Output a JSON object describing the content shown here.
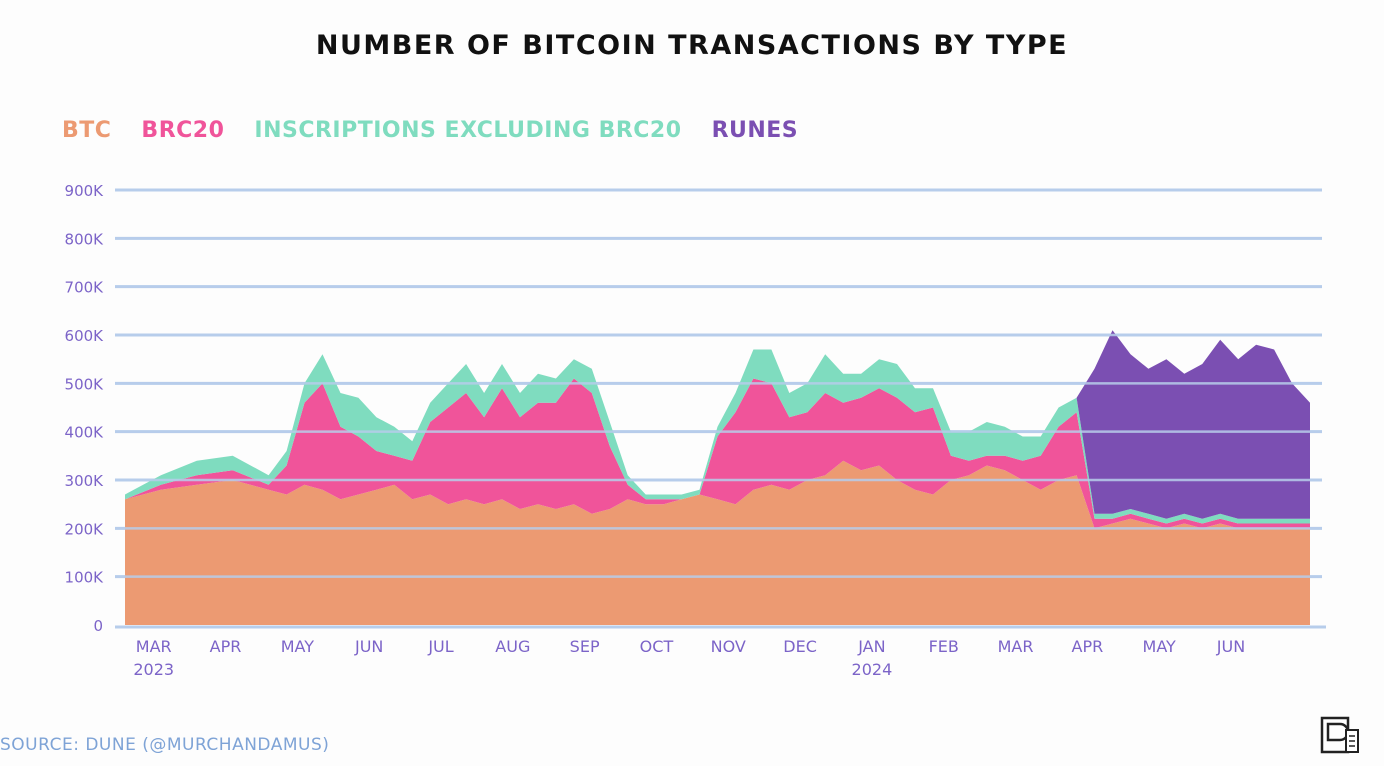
{
  "colors": {
    "btc": "#ec9a72",
    "brc20": "#f0549a",
    "inscriptions": "#7fdcbf",
    "runes": "#7b4fb2",
    "axis_text": "#7c64c8",
    "grid": "#b7cdeb"
  },
  "source": "SOURCE: DUNE (@MURCHANDAMUS)",
  "chart_data": {
    "type": "area",
    "stacked": true,
    "title": "NUMBER OF BITCOIN TRANSACTIONS BY TYPE",
    "xlabel": "",
    "ylabel": "",
    "ylim": [
      0,
      900000
    ],
    "yticks": [
      0,
      100000,
      200000,
      300000,
      400000,
      500000,
      600000,
      700000,
      800000,
      900000
    ],
    "ytick_labels": [
      "0",
      "100K",
      "200K",
      "300K",
      "400K",
      "500K",
      "600K",
      "700K",
      "800K",
      "900K"
    ],
    "xlim": [
      0,
      16.5
    ],
    "xticks": [
      {
        "x": 0.4,
        "label": "MAR",
        "sub": "2023"
      },
      {
        "x": 1.4,
        "label": "APR",
        "sub": ""
      },
      {
        "x": 2.4,
        "label": "MAY",
        "sub": ""
      },
      {
        "x": 3.4,
        "label": "JUN",
        "sub": ""
      },
      {
        "x": 4.4,
        "label": "JUL",
        "sub": ""
      },
      {
        "x": 5.4,
        "label": "AUG",
        "sub": ""
      },
      {
        "x": 6.4,
        "label": "SEP",
        "sub": ""
      },
      {
        "x": 7.4,
        "label": "OCT",
        "sub": ""
      },
      {
        "x": 8.4,
        "label": "NOV",
        "sub": ""
      },
      {
        "x": 9.4,
        "label": "DEC",
        "sub": ""
      },
      {
        "x": 10.4,
        "label": "JAN",
        "sub": "2024"
      },
      {
        "x": 11.4,
        "label": "FEB",
        "sub": ""
      },
      {
        "x": 12.4,
        "label": "MAR",
        "sub": ""
      },
      {
        "x": 13.4,
        "label": "APR",
        "sub": ""
      },
      {
        "x": 14.4,
        "label": "MAY",
        "sub": ""
      },
      {
        "x": 15.4,
        "label": "JUN",
        "sub": ""
      }
    ],
    "legend": [
      "BTC",
      "BRC20",
      "INSCRIPTIONS EXCLUDING BRC20",
      "RUNES"
    ],
    "legend_position": "top-left",
    "x": [
      0,
      0.5,
      1,
      1.5,
      2,
      2.25,
      2.5,
      2.75,
      3,
      3.25,
      3.5,
      3.75,
      4,
      4.25,
      4.5,
      4.75,
      5,
      5.25,
      5.5,
      5.75,
      6,
      6.25,
      6.5,
      6.75,
      7,
      7.25,
      7.5,
      7.75,
      8,
      8.25,
      8.5,
      8.75,
      9,
      9.25,
      9.5,
      9.75,
      10,
      10.25,
      10.5,
      10.75,
      11,
      11.25,
      11.5,
      11.75,
      12,
      12.25,
      12.5,
      12.75,
      13,
      13.25,
      13.5,
      13.75,
      14,
      14.25,
      14.5,
      14.75,
      15,
      15.25,
      15.5,
      15.75,
      16,
      16.25,
      16.5
    ],
    "series": [
      {
        "name": "BTC",
        "values": [
          260000,
          280000,
          290000,
          300000,
          280000,
          270000,
          290000,
          280000,
          260000,
          270000,
          280000,
          290000,
          260000,
          270000,
          250000,
          260000,
          250000,
          260000,
          240000,
          250000,
          240000,
          250000,
          230000,
          240000,
          260000,
          250000,
          250000,
          260000,
          270000,
          260000,
          250000,
          280000,
          290000,
          280000,
          300000,
          310000,
          340000,
          320000,
          330000,
          300000,
          280000,
          270000,
          300000,
          310000,
          330000,
          320000,
          300000,
          280000,
          300000,
          310000,
          200000,
          210000,
          220000,
          210000,
          200000,
          210000,
          200000,
          210000,
          200000,
          200000,
          200000,
          200000,
          200000
        ]
      },
      {
        "name": "BRC20",
        "values": [
          0,
          10000,
          20000,
          20000,
          10000,
          60000,
          170000,
          220000,
          150000,
          120000,
          80000,
          60000,
          80000,
          150000,
          200000,
          220000,
          180000,
          230000,
          190000,
          210000,
          220000,
          260000,
          250000,
          130000,
          30000,
          10000,
          10000,
          0,
          0,
          130000,
          190000,
          230000,
          210000,
          150000,
          140000,
          170000,
          120000,
          150000,
          160000,
          170000,
          160000,
          180000,
          50000,
          30000,
          20000,
          30000,
          40000,
          70000,
          110000,
          130000,
          20000,
          10000,
          10000,
          10000,
          10000,
          10000,
          10000,
          10000,
          10000,
          10000,
          10000,
          10000,
          10000
        ]
      },
      {
        "name": "INSCRIPTIONS EXCLUDING BRC20",
        "values": [
          10000,
          20000,
          30000,
          30000,
          20000,
          30000,
          40000,
          60000,
          70000,
          80000,
          70000,
          60000,
          40000,
          40000,
          50000,
          60000,
          50000,
          50000,
          50000,
          60000,
          50000,
          40000,
          50000,
          50000,
          20000,
          10000,
          10000,
          10000,
          10000,
          20000,
          40000,
          60000,
          70000,
          50000,
          60000,
          80000,
          60000,
          50000,
          60000,
          70000,
          50000,
          40000,
          50000,
          60000,
          70000,
          60000,
          50000,
          40000,
          40000,
          30000,
          10000,
          10000,
          10000,
          10000,
          10000,
          10000,
          10000,
          10000,
          10000,
          10000,
          10000,
          10000,
          10000
        ]
      },
      {
        "name": "RUNES",
        "values": [
          0,
          0,
          0,
          0,
          0,
          0,
          0,
          0,
          0,
          0,
          0,
          0,
          0,
          0,
          0,
          0,
          0,
          0,
          0,
          0,
          0,
          0,
          0,
          0,
          0,
          0,
          0,
          0,
          0,
          0,
          0,
          0,
          0,
          0,
          0,
          0,
          0,
          0,
          0,
          0,
          0,
          0,
          0,
          0,
          0,
          0,
          0,
          0,
          0,
          0,
          300000,
          380000,
          320000,
          300000,
          330000,
          290000,
          320000,
          360000,
          330000,
          360000,
          350000,
          280000,
          240000
        ]
      }
    ]
  }
}
